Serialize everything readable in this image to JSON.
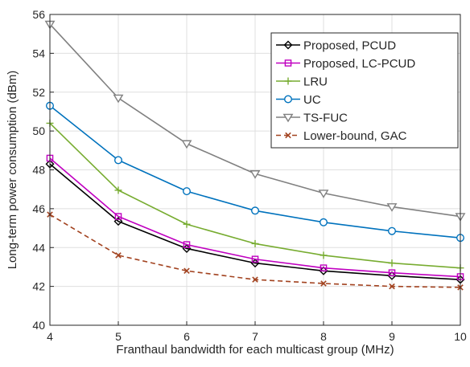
{
  "chart_data": {
    "type": "line",
    "xlabel": "Franthaul bandwidth for each multicast group (MHz)",
    "ylabel": "Long-term power consumption (dBm)",
    "x": [
      4,
      5,
      6,
      7,
      8,
      9,
      10
    ],
    "xlim": [
      4,
      10
    ],
    "ylim": [
      40,
      56
    ],
    "xticks": [
      "4",
      "5",
      "6",
      "7",
      "8",
      "9",
      "10"
    ],
    "yticks": [
      "40",
      "42",
      "44",
      "46",
      "48",
      "50",
      "52",
      "54",
      "56"
    ],
    "grid": true,
    "legend_position": "top-right",
    "series": [
      {
        "name": "Proposed, PCUD",
        "values": [
          48.3,
          45.35,
          43.95,
          43.2,
          42.8,
          42.55,
          42.35
        ],
        "color": "#000000",
        "marker": "diamond",
        "dashed": false
      },
      {
        "name": "Proposed, LC-PCUD",
        "values": [
          48.6,
          45.6,
          44.15,
          43.4,
          42.95,
          42.7,
          42.5
        ],
        "color": "#c000c0",
        "marker": "square",
        "dashed": false
      },
      {
        "name": "LRU",
        "values": [
          50.4,
          46.95,
          45.2,
          44.2,
          43.6,
          43.2,
          42.95
        ],
        "color": "#77ac30",
        "marker": "plus",
        "dashed": false
      },
      {
        "name": "UC",
        "values": [
          51.3,
          48.5,
          46.9,
          45.9,
          45.3,
          44.85,
          44.5
        ],
        "color": "#0072bd",
        "marker": "circle",
        "dashed": false
      },
      {
        "name": "TS-FUC",
        "values": [
          55.5,
          51.7,
          49.35,
          47.8,
          46.8,
          46.1,
          45.6
        ],
        "color": "#808080",
        "marker": "triangle-down",
        "dashed": false
      },
      {
        "name": "Lower-bound, GAC",
        "values": [
          45.7,
          43.6,
          42.8,
          42.35,
          42.15,
          42.0,
          41.95
        ],
        "color": "#a2421f",
        "marker": "x",
        "dashed": true
      }
    ]
  }
}
